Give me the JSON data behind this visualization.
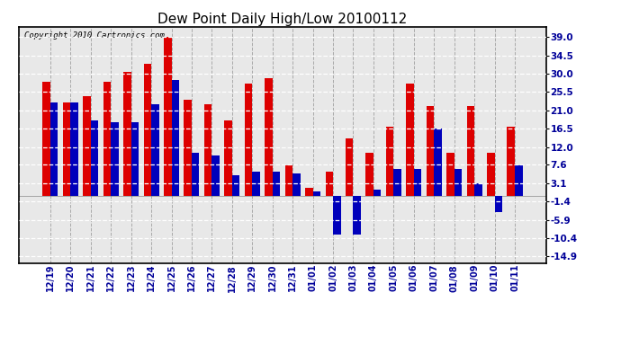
{
  "title": "Dew Point Daily High/Low 20100112",
  "copyright": "Copyright 2010 Cartronics.com",
  "labels": [
    "12/19",
    "12/20",
    "12/21",
    "12/22",
    "12/23",
    "12/24",
    "12/25",
    "12/26",
    "12/27",
    "12/28",
    "12/29",
    "12/30",
    "12/31",
    "01/01",
    "01/02",
    "01/03",
    "01/04",
    "01/05",
    "01/06",
    "01/07",
    "01/08",
    "01/09",
    "01/10",
    "01/11"
  ],
  "high": [
    28.0,
    23.0,
    24.5,
    28.0,
    30.5,
    32.5,
    39.0,
    23.5,
    22.5,
    18.5,
    27.5,
    29.0,
    7.5,
    2.0,
    6.0,
    14.0,
    10.5,
    17.0,
    27.5,
    22.0,
    10.5,
    22.0,
    10.5,
    17.0
  ],
  "low": [
    23.0,
    23.0,
    18.5,
    18.0,
    18.0,
    22.5,
    28.5,
    10.5,
    10.0,
    5.0,
    6.0,
    6.0,
    5.5,
    1.0,
    -9.5,
    -9.5,
    1.5,
    6.5,
    6.5,
    16.5,
    6.5,
    3.0,
    -4.0,
    7.5
  ],
  "high_color": "#dd0000",
  "low_color": "#0000bb",
  "bg_color": "#ffffff",
  "plot_bg_color": "#e8e8e8",
  "grid_color_h": "#ffffff",
  "grid_color_v": "#aaaaaa",
  "yticks": [
    39.0,
    34.5,
    30.0,
    25.5,
    21.0,
    16.5,
    12.0,
    7.6,
    3.1,
    -1.4,
    -5.9,
    -10.4,
    -14.9
  ],
  "ylim": [
    -16.5,
    41.5
  ],
  "bar_width": 0.38,
  "figsize": [
    6.9,
    3.75
  ],
  "dpi": 100
}
